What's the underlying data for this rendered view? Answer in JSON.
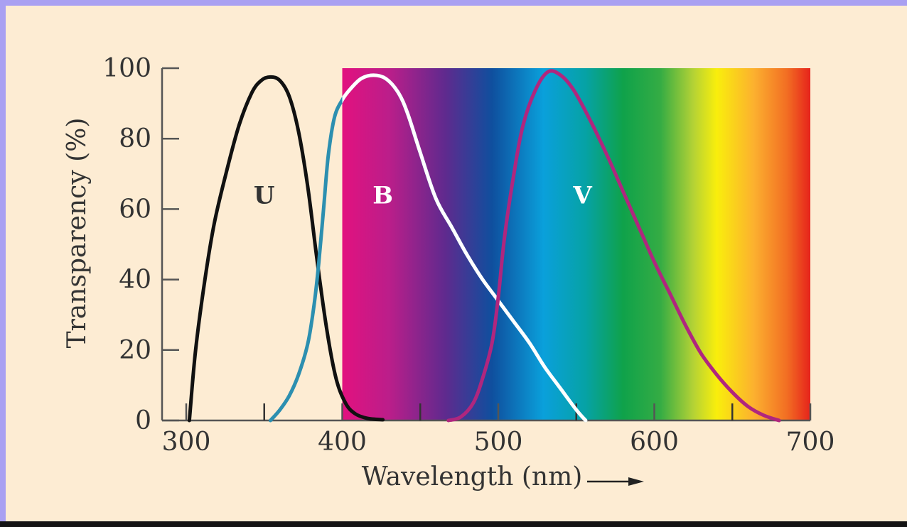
{
  "chart_data": {
    "type": "line",
    "xlabel": "Wavelength (nm)",
    "ylabel": "Transparency (%)",
    "xlim": [
      300,
      700
    ],
    "ylim": [
      0,
      100
    ],
    "x_ticks": [
      300,
      400,
      500,
      600,
      700
    ],
    "x_tick_labels": [
      "300",
      "400",
      "500",
      "600",
      "700"
    ],
    "x_minor_ticks": [
      350,
      450,
      550,
      650
    ],
    "y_ticks": [
      0,
      20,
      40,
      60,
      80,
      100
    ],
    "y_tick_labels": [
      "0",
      "20",
      "40",
      "60",
      "80",
      "100"
    ],
    "grid": false,
    "spectrum_band": {
      "x_range": [
        400,
        700
      ],
      "y_range": [
        0,
        100
      ]
    },
    "series": [
      {
        "name": "U",
        "color": "#111111",
        "label_position": [
          350,
          64
        ],
        "points": [
          [
            302,
            0
          ],
          [
            306,
            20
          ],
          [
            312,
            40
          ],
          [
            318,
            56
          ],
          [
            326,
            71
          ],
          [
            334,
            84
          ],
          [
            342,
            93
          ],
          [
            348,
            96.5
          ],
          [
            354,
            97.5
          ],
          [
            360,
            96.5
          ],
          [
            366,
            92
          ],
          [
            372,
            82
          ],
          [
            378,
            66
          ],
          [
            384,
            45
          ],
          [
            390,
            26
          ],
          [
            396,
            12
          ],
          [
            402,
            5
          ],
          [
            408,
            2
          ],
          [
            416,
            0.6
          ],
          [
            426,
            0.2
          ]
        ]
      },
      {
        "name": "B",
        "color": "#ffffff",
        "shaded_color": "#2c8fb0",
        "label_position": [
          426,
          64
        ],
        "points": [
          [
            354,
            0
          ],
          [
            360,
            3
          ],
          [
            366,
            7
          ],
          [
            372,
            13
          ],
          [
            378,
            22
          ],
          [
            382,
            33
          ],
          [
            385,
            45
          ],
          [
            388,
            60
          ],
          [
            391,
            75
          ],
          [
            395,
            86
          ],
          [
            400,
            91
          ],
          [
            405,
            94
          ],
          [
            412,
            97
          ],
          [
            420,
            98
          ],
          [
            428,
            97
          ],
          [
            436,
            93
          ],
          [
            442,
            87
          ],
          [
            450,
            76
          ],
          [
            460,
            63
          ],
          [
            470,
            55
          ],
          [
            480,
            47
          ],
          [
            490,
            40
          ],
          [
            500,
            34
          ],
          [
            510,
            28
          ],
          [
            520,
            22
          ],
          [
            530,
            15
          ],
          [
            540,
            9
          ],
          [
            550,
            3
          ],
          [
            556,
            0
          ]
        ]
      },
      {
        "name": "V",
        "color": "#b0267e",
        "label_position": [
          554,
          64
        ],
        "points": [
          [
            468,
            0
          ],
          [
            476,
            1
          ],
          [
            484,
            5
          ],
          [
            490,
            12
          ],
          [
            496,
            22
          ],
          [
            500,
            35
          ],
          [
            504,
            52
          ],
          [
            510,
            70
          ],
          [
            516,
            84
          ],
          [
            524,
            94
          ],
          [
            532,
            99
          ],
          [
            540,
            98
          ],
          [
            548,
            94
          ],
          [
            558,
            86
          ],
          [
            570,
            75
          ],
          [
            580,
            65
          ],
          [
            590,
            55
          ],
          [
            600,
            45
          ],
          [
            610,
            36
          ],
          [
            620,
            27
          ],
          [
            630,
            19
          ],
          [
            640,
            13
          ],
          [
            650,
            8
          ],
          [
            660,
            4
          ],
          [
            670,
            1.5
          ],
          [
            680,
            0
          ]
        ]
      }
    ]
  }
}
